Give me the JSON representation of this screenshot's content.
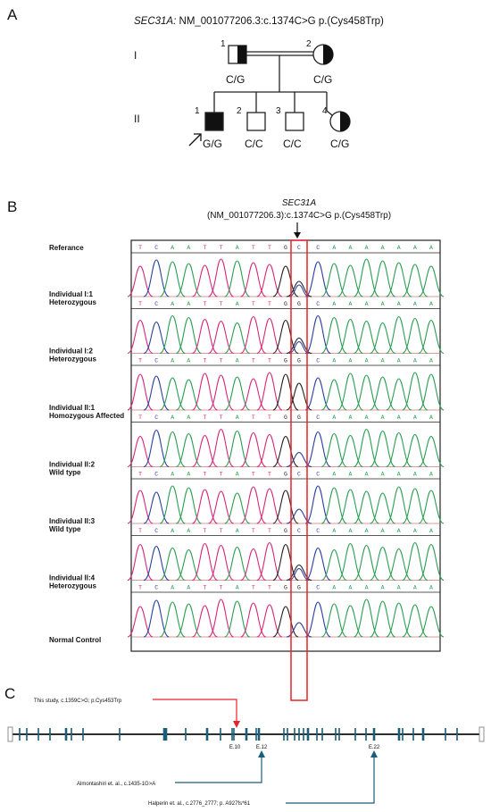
{
  "panelA": {
    "letter": "A",
    "title_gene": "SEC31A:",
    "title_variant": " NM_001077206.3:c.1374C>G p.(Cys458Trp)",
    "gen_I": "I",
    "gen_II": "II",
    "members": [
      {
        "id": "1",
        "genotype": "C/G",
        "type": "male-carrier"
      },
      {
        "id": "2",
        "genotype": "C/G",
        "type": "female-carrier"
      },
      {
        "id": "1",
        "genotype": "G/G",
        "type": "male-affected",
        "proband": true
      },
      {
        "id": "2",
        "genotype": "C/C",
        "type": "male-unaffected"
      },
      {
        "id": "3",
        "genotype": "C/C",
        "type": "male-unaffected"
      },
      {
        "id": "4",
        "genotype": "C/G",
        "type": "female-carrier"
      }
    ]
  },
  "panelB": {
    "letter": "B",
    "gene": "SEC31A",
    "variant": "(NM_001077206.3):c.1374C>G p.(Cys458Trp)",
    "reference_label": "Referance",
    "reference_bases": [
      "T",
      "C",
      "A",
      "A",
      "T",
      "T",
      "A",
      "T",
      "T",
      "G",
      "C",
      "C",
      "A",
      "A",
      "A",
      "A",
      "A",
      "A",
      "A"
    ],
    "rows": [
      {
        "line1": "Individual I:1",
        "line2": "Heterozygous",
        "bases": [
          "T",
          "C",
          "A",
          "A",
          "T",
          "T",
          "A",
          "T",
          "T",
          "G",
          "G",
          "C",
          "A",
          "A",
          "A",
          "A",
          "A",
          "A",
          "A"
        ],
        "het": true
      },
      {
        "line1": "Individual I:2",
        "line2": "Heterozygous",
        "bases": [
          "T",
          "C",
          "A",
          "A",
          "T",
          "T",
          "A",
          "T",
          "T",
          "G",
          "G",
          "C",
          "A",
          "A",
          "A",
          "A",
          "A",
          "A",
          "A"
        ],
        "het": true
      },
      {
        "line1": "Individual II:1",
        "line2": "Homozygous Affected",
        "bases": [
          "T",
          "C",
          "A",
          "A",
          "T",
          "T",
          "A",
          "T",
          "T",
          "G",
          "G",
          "C",
          "A",
          "A",
          "A",
          "A",
          "A",
          "A",
          "A"
        ],
        "het": false
      },
      {
        "line1": "Individual II:2",
        "line2": "Wild type",
        "bases": [
          "T",
          "C",
          "A",
          "A",
          "T",
          "T",
          "A",
          "T",
          "T",
          "G",
          "C",
          "C",
          "A",
          "A",
          "A",
          "A",
          "A",
          "A",
          "A"
        ],
        "het": false
      },
      {
        "line1": "Individual II:3",
        "line2": "Wild type",
        "bases": [
          "T",
          "C",
          "A",
          "A",
          "T",
          "T",
          "A",
          "T",
          "T",
          "G",
          "C",
          "C",
          "A",
          "A",
          "A",
          "A",
          "A",
          "A",
          "A"
        ],
        "het": false
      },
      {
        "line1": "Individual II:4",
        "line2": "Heterozygous",
        "bases": [
          "T",
          "C",
          "A",
          "A",
          "T",
          "T",
          "A",
          "T",
          "T",
          "G",
          "G",
          "C",
          "A",
          "A",
          "A",
          "A",
          "A",
          "A",
          "A"
        ],
        "het": true
      },
      {
        "line1": "Normal Control",
        "line2": "",
        "bases": [
          "T",
          "C",
          "A",
          "A",
          "T",
          "T",
          "A",
          "T",
          "T",
          "G",
          "C",
          "C",
          "A",
          "A",
          "A",
          "A",
          "A",
          "A",
          "A"
        ],
        "het": false
      }
    ],
    "colors": {
      "T": "#d6287a",
      "C": "#2a3fa0",
      "A": "#2a9e52",
      "G": "#222222",
      "highlight": "#e8232a"
    }
  },
  "panelC": {
    "letter": "C",
    "this_study": "This study, c.1359C>G; p.Cys453Trp",
    "almontashiri": "Almontashiri et. al., c.1435-1G>A",
    "halperin": "Halperin et. al., c.2776_2777; p. A927fs*61",
    "exon10": "E.10",
    "exon12": "E.12",
    "exon22": "E.22",
    "colors": {
      "this_study": "#e8232a",
      "literature": "#1b5e7a",
      "exon": "#1b5e7a"
    }
  }
}
